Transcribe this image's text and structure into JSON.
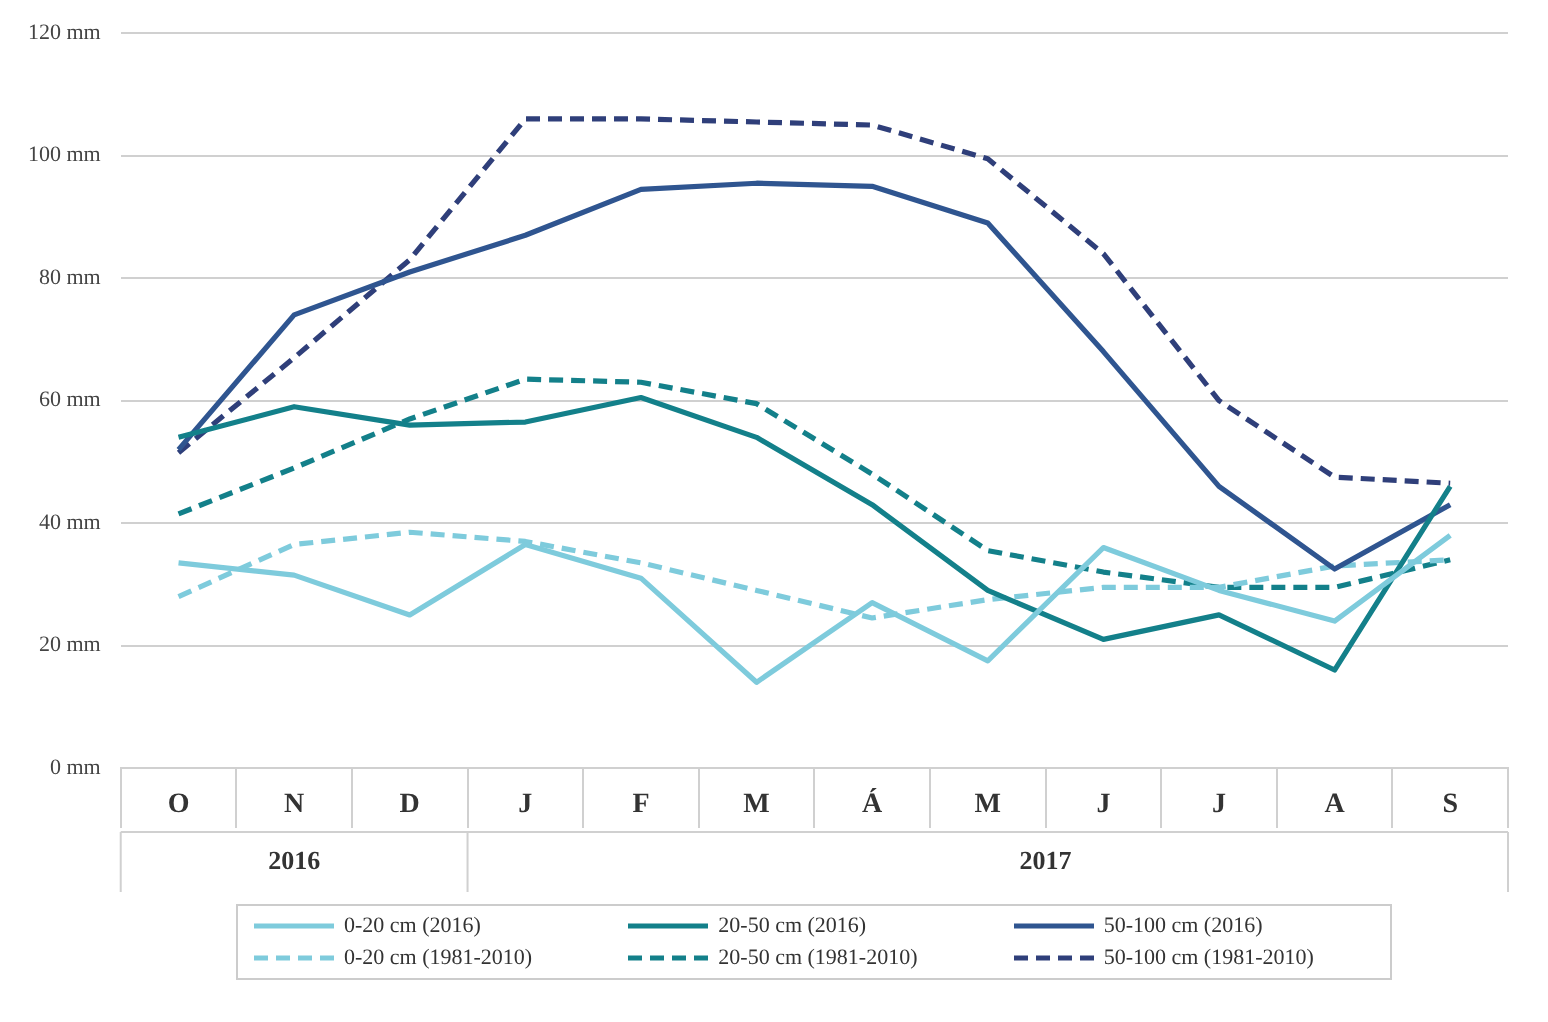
{
  "chart_data": {
    "type": "line",
    "categories": [
      "O",
      "N",
      "D",
      "J",
      "F",
      "M",
      "Á",
      "M",
      "J",
      "J",
      "A",
      "S"
    ],
    "series": [
      {
        "name": "0-20 cm (2016)",
        "color": "#7ecbdc",
        "line_style": "solid",
        "values": [
          33.5,
          31.5,
          25,
          36.5,
          31,
          14,
          27,
          17.5,
          36,
          29,
          24,
          38
        ]
      },
      {
        "name": "20-50 cm (2016)",
        "color": "#13808a",
        "line_style": "solid",
        "values": [
          54,
          59,
          56,
          56.5,
          60.5,
          54,
          43,
          29,
          21,
          25,
          16,
          46
        ]
      },
      {
        "name": "50-100 cm (2016)",
        "color": "#2f5590",
        "line_style": "solid",
        "values": [
          52,
          74,
          81,
          87,
          94.5,
          95.5,
          95,
          89,
          68,
          46,
          32.5,
          43
        ]
      },
      {
        "name": "0-20 cm (1981-2010)",
        "color": "#7ecbdc",
        "line_style": "dashed",
        "values": [
          28,
          36.5,
          38.5,
          37,
          33.5,
          29,
          24.5,
          27.5,
          29.5,
          29.5,
          33,
          34
        ]
      },
      {
        "name": "20-50 cm (1981-2010)",
        "color": "#13808a",
        "line_style": "dashed",
        "values": [
          41.5,
          49,
          57,
          63.5,
          63,
          59.5,
          48,
          35.5,
          32,
          29.5,
          29.5,
          34
        ]
      },
      {
        "name": "50-100 cm (1981-2010)",
        "color": "#2f3f7a",
        "line_style": "dashed",
        "values": [
          51.5,
          67,
          83,
          106,
          106,
          105.5,
          105,
          99.5,
          84,
          60,
          47.5,
          46.5
        ]
      }
    ],
    "ylim": [
      0,
      120
    ],
    "yticks": [
      {
        "value": 0,
        "label": "0 mm"
      },
      {
        "value": 20,
        "label": "20 mm"
      },
      {
        "value": 40,
        "label": "40 mm"
      },
      {
        "value": 60,
        "label": "60 mm"
      },
      {
        "value": 80,
        "label": "80 mm"
      },
      {
        "value": 100,
        "label": "100 mm"
      },
      {
        "value": 120,
        "label": "120 mm"
      }
    ],
    "annotations": [
      "2016",
      "2017"
    ],
    "grid": "y",
    "legend": "bottom",
    "marker": "none"
  }
}
